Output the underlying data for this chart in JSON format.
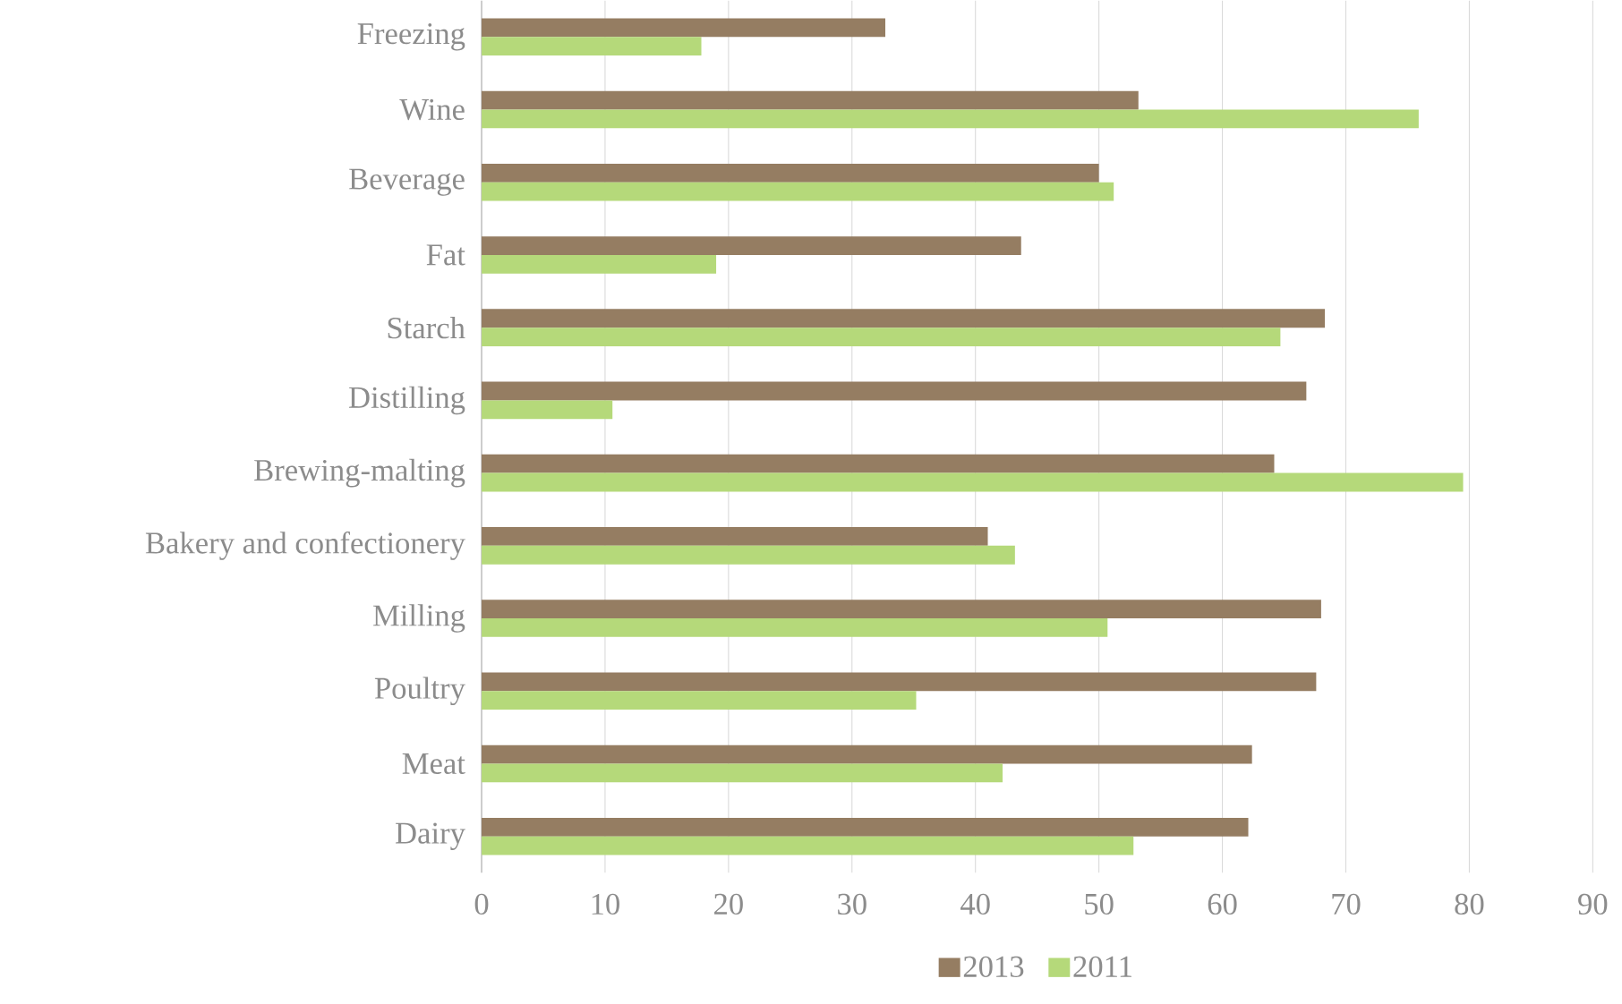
{
  "chart_data": {
    "type": "bar",
    "orientation": "horizontal",
    "categories": [
      "Freezing",
      "Wine",
      "Beverage",
      "Fat",
      "Starch",
      "Distilling",
      "Brewing-malting",
      "Bakery and confectionery",
      "Milling",
      "Poultry",
      "Meat",
      "Dairy"
    ],
    "series": [
      {
        "name": "2013",
        "color": "#957d62",
        "values": [
          32.7,
          53.2,
          50.0,
          43.7,
          68.3,
          66.8,
          64.2,
          41.0,
          68.0,
          67.6,
          62.4,
          62.1
        ]
      },
      {
        "name": "2011",
        "color": "#b5d97a",
        "values": [
          17.8,
          75.9,
          51.2,
          19.0,
          64.7,
          10.6,
          79.5,
          43.2,
          50.7,
          35.2,
          42.2,
          52.8
        ]
      }
    ],
    "xlim": [
      0,
      90
    ],
    "xticks": [
      0,
      10,
      20,
      30,
      40,
      50,
      60,
      70,
      80,
      90
    ],
    "grid": "x",
    "legend": "bottom"
  }
}
